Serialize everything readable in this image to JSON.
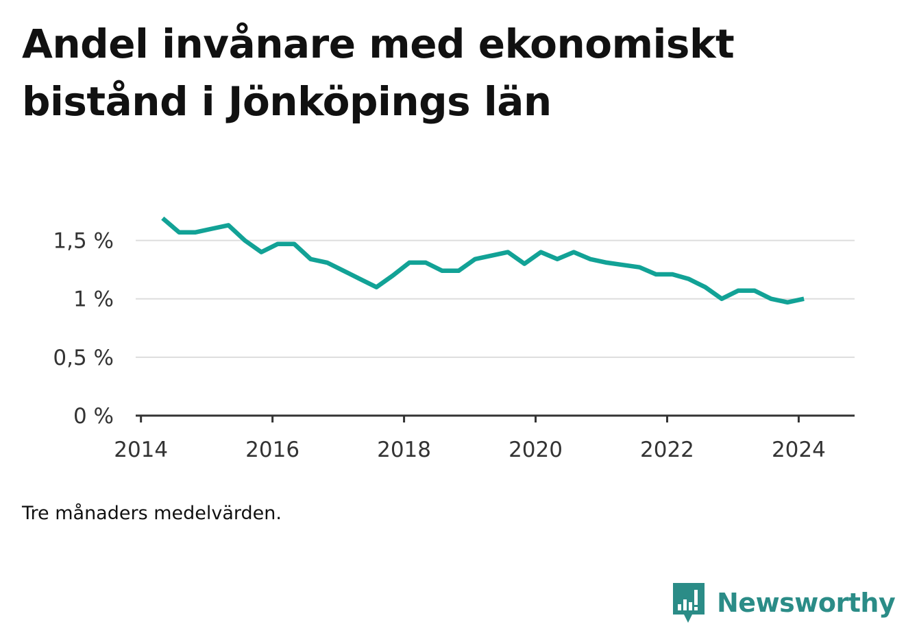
{
  "title": "Andel invånare med ekonomiskt bistånd i Jönköpings län",
  "note": "Tre månaders medelvärden.",
  "brand": {
    "name": "Newsworthy",
    "color": "#2b8c87",
    "logo_icon": "newsworthy-bar-chart-speech-bubble-icon"
  },
  "colors": {
    "line": "#12a296",
    "grid": "#dddddd",
    "axis": "#333333",
    "text": "#111111"
  },
  "chart_data": {
    "type": "line",
    "title": "Andel invånare med ekonomiskt bistånd i Jönköpings län",
    "xlabel": "",
    "ylabel": "",
    "xlim": [
      2013.92,
      2024.85
    ],
    "ylim": [
      0,
      1.75
    ],
    "x_ticks": [
      2014,
      2016,
      2018,
      2020,
      2022,
      2024
    ],
    "x_tick_labels": [
      "2014",
      "2016",
      "2018",
      "2020",
      "2022",
      "2024"
    ],
    "y_ticks": [
      0,
      0.5,
      1,
      1.5
    ],
    "y_tick_labels": [
      "0 %",
      "0,5 %",
      "1 %",
      "1,5 %"
    ],
    "grid": true,
    "legend": "none",
    "series": [
      {
        "x": [
          2014.33,
          2014.58,
          2014.83,
          2015.08,
          2015.33,
          2015.58,
          2015.83,
          2016.08,
          2016.33,
          2016.58,
          2016.83,
          2017.08,
          2017.33,
          2017.58,
          2017.83,
          2018.08,
          2018.33,
          2018.58,
          2018.83,
          2019.08,
          2019.33,
          2019.58,
          2019.83,
          2020.08,
          2020.33,
          2020.58,
          2020.83,
          2021.08,
          2021.33,
          2021.58,
          2021.83,
          2022.08,
          2022.33,
          2022.58,
          2022.83,
          2023.08,
          2023.33,
          2023.58,
          2023.83,
          2024.08
        ],
        "y": [
          1.69,
          1.57,
          1.57,
          1.6,
          1.63,
          1.5,
          1.4,
          1.47,
          1.47,
          1.34,
          1.31,
          1.24,
          1.17,
          1.1,
          1.2,
          1.31,
          1.31,
          1.24,
          1.24,
          1.34,
          1.37,
          1.4,
          1.3,
          1.4,
          1.34,
          1.4,
          1.34,
          1.31,
          1.29,
          1.27,
          1.21,
          1.21,
          1.17,
          1.1,
          1.0,
          1.07,
          1.07,
          1.0,
          0.97,
          1.0
        ]
      }
    ]
  }
}
